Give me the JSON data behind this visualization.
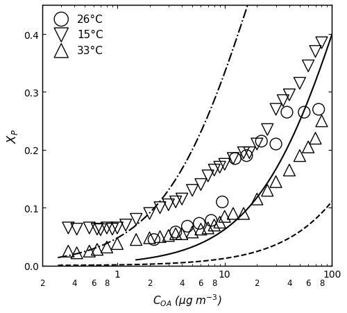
{
  "title": "",
  "xlabel": "$C_{OA}$ (μg m$^{-3}$)",
  "ylabel": "$X_P$",
  "xlim": [
    0.2,
    100
  ],
  "ylim": [
    0.0,
    0.45
  ],
  "yticks": [
    0.0,
    0.1,
    0.2,
    0.3,
    0.4
  ],
  "data_26C": {
    "x": [
      2.2,
      3.5,
      4.5,
      5.8,
      7.5,
      9.5,
      12.5,
      16.0,
      22.0,
      30.0,
      38.0,
      55.0,
      75.0
    ],
    "y": [
      0.045,
      0.058,
      0.068,
      0.073,
      0.078,
      0.11,
      0.185,
      0.19,
      0.215,
      0.21,
      0.265,
      0.265,
      0.27
    ],
    "label": "26°C",
    "marker": "o",
    "color": "black"
  },
  "data_15C": {
    "x": [
      0.35,
      0.42,
      0.55,
      0.65,
      0.7,
      0.8,
      0.9,
      1.0,
      1.2,
      1.5,
      2.0,
      2.5,
      3.0,
      3.5,
      4.0,
      5.0,
      6.0,
      7.0,
      8.0,
      9.0,
      10.0,
      12.0,
      15.0,
      17.0,
      20.0,
      25.0,
      30.0,
      35.0,
      40.0,
      50.0,
      60.0,
      70.0,
      80.0
    ],
    "y": [
      0.065,
      0.063,
      0.065,
      0.063,
      0.062,
      0.065,
      0.063,
      0.065,
      0.07,
      0.08,
      0.09,
      0.1,
      0.105,
      0.11,
      0.115,
      0.13,
      0.14,
      0.155,
      0.165,
      0.17,
      0.175,
      0.185,
      0.195,
      0.195,
      0.21,
      0.235,
      0.27,
      0.285,
      0.295,
      0.315,
      0.345,
      0.37,
      0.385
    ],
    "label": "15°C",
    "marker": "v",
    "color": "black"
  },
  "data_33C": {
    "x": [
      0.35,
      0.42,
      0.55,
      0.65,
      0.8,
      1.0,
      1.5,
      2.0,
      2.5,
      3.0,
      3.5,
      4.0,
      5.0,
      6.0,
      7.0,
      8.0,
      9.0,
      10.0,
      12.0,
      15.0,
      20.0,
      25.0,
      30.0,
      40.0,
      50.0,
      60.0,
      70.0,
      80.0
    ],
    "y": [
      0.025,
      0.022,
      0.025,
      0.028,
      0.032,
      0.038,
      0.045,
      0.048,
      0.05,
      0.052,
      0.055,
      0.055,
      0.058,
      0.063,
      0.065,
      0.07,
      0.075,
      0.085,
      0.09,
      0.09,
      0.115,
      0.13,
      0.145,
      0.165,
      0.19,
      0.205,
      0.22,
      0.25
    ],
    "label": "33°C",
    "marker": "^",
    "color": "black"
  },
  "curve_26C_cstar": 150.0,
  "curve_26C_start": 1.5,
  "curve_15C_cstar": 20.0,
  "curve_15C_start": 0.28,
  "curve_33C_cstar": 800.0,
  "curve_33C_start": 0.28,
  "legend_loc": "upper left",
  "marker_size": 7,
  "line_width": 1.5,
  "background_color": "#ffffff"
}
